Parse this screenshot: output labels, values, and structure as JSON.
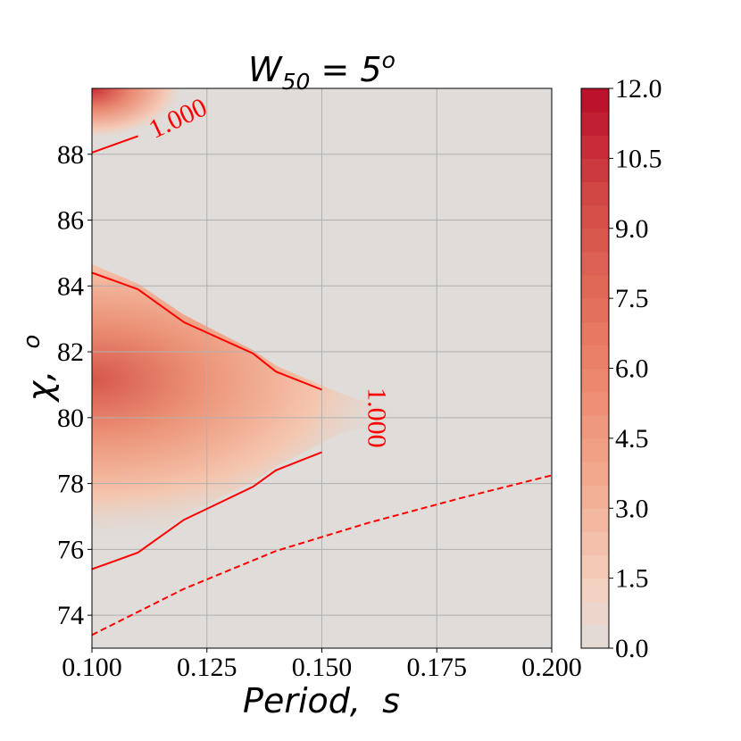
{
  "chart_data": {
    "type": "heatmap",
    "title_main": "W",
    "title_sub": "50",
    "title_rest": " = 5",
    "title_sup": "o",
    "xlabel": "Period,  s",
    "ylabel_main": "χ,  ",
    "ylabel_sup": "o",
    "xlim": [
      0.1,
      0.2
    ],
    "ylim": [
      73,
      90
    ],
    "xticks": [
      0.1,
      0.125,
      0.15,
      0.175,
      0.2
    ],
    "xtick_labels": [
      "0.100",
      "0.125",
      "0.150",
      "0.175",
      "0.200"
    ],
    "yticks": [
      74,
      76,
      78,
      80,
      82,
      84,
      86,
      88
    ],
    "ytick_labels": [
      "74",
      "76",
      "78",
      "80",
      "82",
      "84",
      "86",
      "88"
    ],
    "grid": true,
    "colorbar": {
      "range": [
        0,
        12
      ],
      "levels": 24,
      "ticks": [
        0,
        1.5,
        3,
        4.5,
        6,
        7.5,
        9,
        10.5,
        12
      ],
      "tick_labels": [
        "0.0",
        "1.5",
        "3.0",
        "4.5",
        "6.0",
        "7.5",
        "9.0",
        "10.5",
        "12.0"
      ],
      "colormap": "Reds-like",
      "low_color": "#dfdcd9",
      "high_color": "#b70d28"
    },
    "contours": [
      {
        "level": 1.0,
        "label": "1.000",
        "style": "solid",
        "color": "#ff0000",
        "x": [
          0.1,
          0.11,
          0.12,
          0.135,
          0.14,
          0.15
        ],
        "y": [
          84.4,
          83.9,
          82.9,
          81.95,
          81.4,
          80.85
        ]
      },
      {
        "level": 1.0,
        "style": "solid",
        "color": "#ff0000",
        "x": [
          0.1,
          0.11,
          0.12,
          0.135,
          0.14,
          0.15
        ],
        "y": [
          75.4,
          75.9,
          76.9,
          77.9,
          78.4,
          78.95
        ]
      },
      {
        "level": 1.0,
        "label": "1.000",
        "style": "solid",
        "color": "#ff0000",
        "x": [
          0.1,
          0.11
        ],
        "y": [
          88.05,
          88.55
        ]
      },
      {
        "style": "dashed",
        "color": "#ff0000",
        "x": [
          0.1,
          0.12,
          0.14,
          0.16,
          0.18,
          0.2
        ],
        "y": [
          73.4,
          74.8,
          75.95,
          76.8,
          77.55,
          78.25
        ]
      }
    ],
    "field_peaks": [
      {
        "x": 0.1,
        "y": 80.9,
        "value": 8.5
      },
      {
        "x": 0.1,
        "y": 90,
        "value": 10
      }
    ]
  }
}
